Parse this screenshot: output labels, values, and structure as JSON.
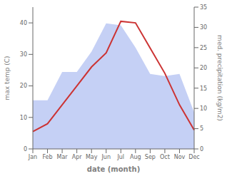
{
  "chart_data": {
    "type": "line",
    "xlabel": "date (month)",
    "ylabel": "max temp (C)",
    "y2label": "med. precipitation (kg/m2)",
    "categories": [
      "Jan",
      "Feb",
      "Mar",
      "Apr",
      "May",
      "Jun",
      "Jul",
      "Aug",
      "Sep",
      "Oct",
      "Nov",
      "Dec"
    ],
    "series": [
      {
        "type": "area",
        "axis": "y2",
        "color": "#c5d0f5",
        "values": [
          12.0,
          12.0,
          19.0,
          19.0,
          24.0,
          31.0,
          30.5,
          25.0,
          18.5,
          18.0,
          18.5,
          9.0
        ]
      },
      {
        "type": "line",
        "color": "#cc3333",
        "values": [
          5.5,
          8.0,
          14.0,
          20.0,
          26.0,
          30.5,
          40.5,
          40.0,
          32.0,
          24.0,
          14.0,
          6.0
        ]
      }
    ],
    "ylim": [
      0,
      45
    ],
    "yticks": [
      0,
      10,
      20,
      30,
      40
    ],
    "y2lim": [
      0,
      35
    ],
    "y2ticks": [
      0,
      5,
      10,
      15,
      20,
      25,
      30,
      35
    ],
    "grid": false
  }
}
